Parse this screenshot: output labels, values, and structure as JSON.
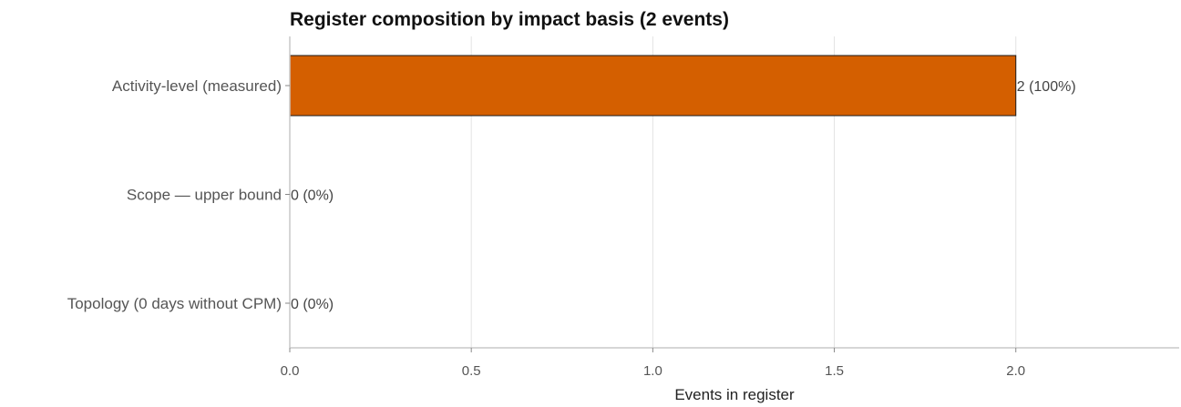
{
  "chart_data": {
    "type": "bar",
    "orientation": "horizontal",
    "title": "Register composition by impact basis (2 events)",
    "xlabel": "Events in register",
    "ylabel": "",
    "categories": [
      "Activity-level (measured)",
      "Scope — upper bound",
      "Topology (0 days without CPM)"
    ],
    "values": [
      2,
      0,
      0
    ],
    "value_labels": [
      "2 (100%)",
      "0 (0%)",
      "0 (0%)"
    ],
    "xlim": [
      0,
      2.45
    ],
    "xticks": [
      0,
      0.5,
      1,
      1.5,
      2
    ],
    "xtick_labels": [
      "0.0",
      "0.5",
      "1.0",
      "1.5",
      "2.0"
    ],
    "grid": "vertical",
    "bar_color": "#d45f00",
    "bar_edge_color": "#1a1a1a"
  }
}
